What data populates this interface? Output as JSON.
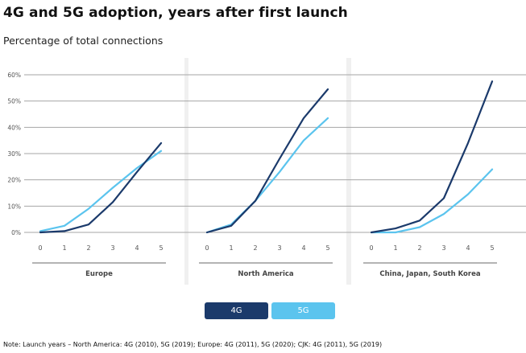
{
  "title": "4G and 5G adoption, years after first launch",
  "subtitle": "Percentage of total connections",
  "note": "Note: Launch years – North America: 4G (2010), 5G (2019); Europe: 4G (2011), 5G (2020); CJK: 4G (2011), 5G (2019)",
  "colors": {
    "4G": "#1b3a6b",
    "5G": "#5bc4ee",
    "grid": "#a6a6a6",
    "separator": "#f0f0f0",
    "axis_text": "#555555"
  },
  "legend": [
    {
      "label": "4G",
      "color": "#1b3a6b"
    },
    {
      "label": "5G",
      "color": "#5bc4ee"
    }
  ],
  "chart_data": {
    "type": "line",
    "title": "4G and 5G adoption, years after first launch",
    "ylabel": "Percentage of total connections",
    "ylim": [
      0,
      60
    ],
    "yticks": [
      "0%",
      "10%",
      "20%",
      "30%",
      "40%",
      "50%",
      "60%"
    ],
    "ytick_values": [
      0,
      10,
      20,
      30,
      40,
      50,
      60
    ],
    "x": [
      0,
      1,
      2,
      3,
      4,
      5
    ],
    "xtick_labels": [
      "0",
      "1",
      "2",
      "3",
      "4",
      "5"
    ],
    "grid": true,
    "legend_position": "bottom-center",
    "panels": [
      {
        "label": "Europe",
        "series": [
          {
            "name": "4G",
            "values": [
              0,
              0.5,
              3,
              11.5,
              23,
              34
            ]
          },
          {
            "name": "5G",
            "values": [
              0.5,
              2.5,
              9,
              17,
              24.5,
              31
            ]
          }
        ]
      },
      {
        "label": "North America",
        "series": [
          {
            "name": "4G",
            "values": [
              0,
              2.5,
              12,
              28,
              43.5,
              54.5
            ]
          },
          {
            "name": "5G",
            "values": [
              0,
              3,
              12,
              23,
              35,
              43.5
            ]
          }
        ]
      },
      {
        "label": "China, Japan, South Korea",
        "series": [
          {
            "name": "4G",
            "values": [
              0,
              1.5,
              4.5,
              13,
              34,
              57.5
            ]
          },
          {
            "name": "5G",
            "values": [
              0,
              0,
              2,
              7,
              14.5,
              24
            ]
          }
        ]
      }
    ]
  }
}
